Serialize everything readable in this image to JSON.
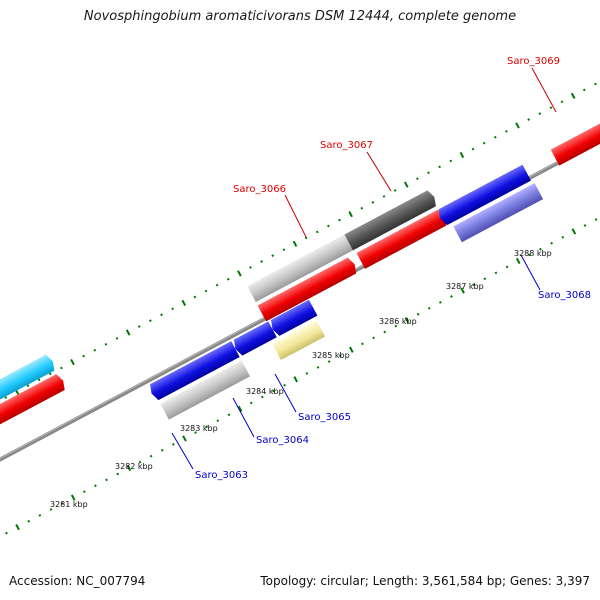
{
  "title": "Novosphingobium aromaticivorans DSM 12444, complete genome",
  "footer": {
    "accession": "Accession: NC_007794",
    "summary": "Topology: circular; Length: 3,561,584 bp; Genes: 3,397"
  },
  "scale": {
    "unit": "kbp",
    "tick_labels": [
      "3281 kbp",
      "3282 kbp",
      "3283 kbp",
      "3284 kbp",
      "3285 kbp",
      "3286 kbp",
      "3287 kbp",
      "3288 kbp"
    ]
  },
  "colors": {
    "forward_label": "#dd0000",
    "reverse_label": "#0000cc",
    "backbone": "#888888",
    "tick": "#007700"
  },
  "genes_labeled": [
    {
      "name": "Saro_3069",
      "strand": "forward",
      "color": "#ff0000"
    },
    {
      "name": "Saro_3067",
      "strand": "forward",
      "color": "#555555"
    },
    {
      "name": "Saro_3066",
      "strand": "forward",
      "color": "#c0c0c0"
    },
    {
      "name": "Saro_3068",
      "strand": "reverse",
      "color": "#7777dd"
    },
    {
      "name": "Saro_3065",
      "strand": "reverse",
      "color": "#f3e79a"
    },
    {
      "name": "Saro_3064",
      "strand": "reverse",
      "color": "#1010e0"
    },
    {
      "name": "Saro_3063",
      "strand": "reverse",
      "color": "#b0b0b0"
    }
  ],
  "other_features_colors": [
    "#22ccff",
    "#ff0000",
    "#1010e0"
  ]
}
